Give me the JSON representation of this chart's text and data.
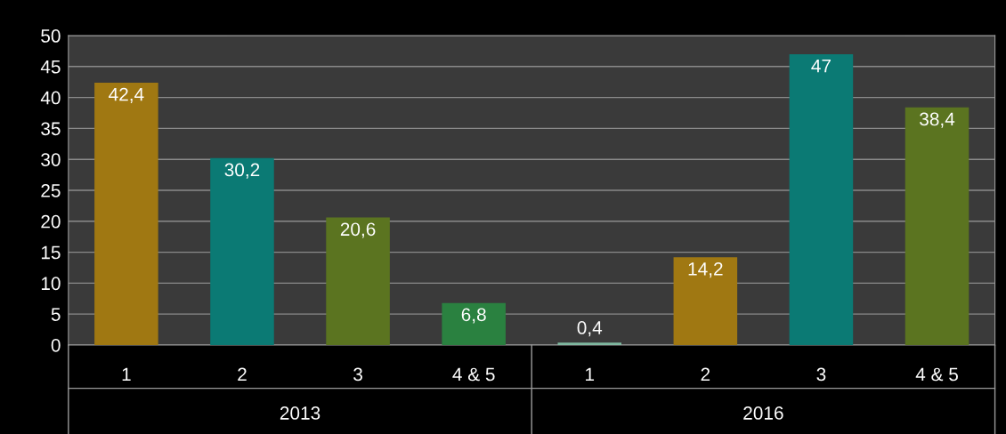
{
  "chart_data": {
    "type": "bar",
    "categories": [
      "1",
      "2",
      "3",
      "4 & 5",
      "1",
      "2",
      "3",
      "4 & 5"
    ],
    "values": [
      42.4,
      30.2,
      20.6,
      6.8,
      0.4,
      14.2,
      47,
      38.4
    ],
    "colors": [
      "#a07812",
      "#0b7a74",
      "#5b7420",
      "#2a8140",
      "#7fb8a0",
      "#a07812",
      "#0b7a74",
      "#5b7420"
    ],
    "ylim": [
      0,
      50
    ],
    "yticks": [
      0,
      5,
      10,
      15,
      20,
      25,
      30,
      35,
      40,
      45,
      50
    ],
    "value_labels": [
      "42,4",
      "30,2",
      "20,6",
      "6,8",
      "0,4",
      "14,2",
      "47",
      "38,4"
    ],
    "grid": "y",
    "legend": false,
    "annotations": [
      "2013",
      "2016"
    ]
  }
}
